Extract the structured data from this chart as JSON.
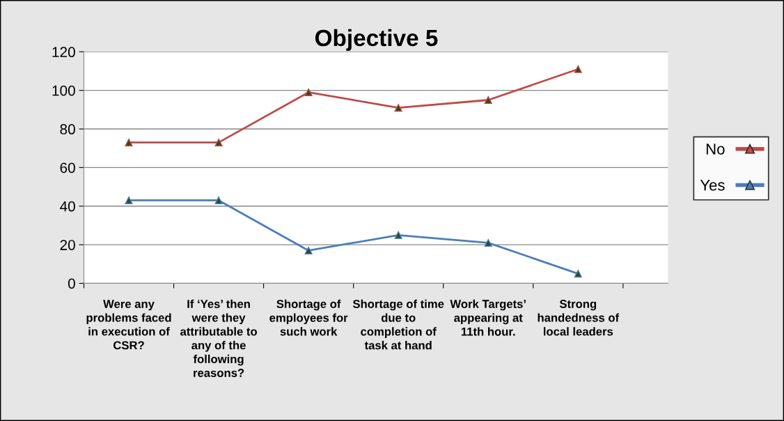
{
  "chart_data": {
    "type": "line",
    "title": "Objective 5",
    "categories": [
      "Were any problems faced in execution of CSR?",
      "If ‘Yes’ then were they attributable to any of the following reasons?",
      "Shortage of employees for such work",
      "Shortage of time due to completion of task at hand",
      "Work Targets’ appearing at 11th hour.",
      "Strong handedness of local leaders"
    ],
    "series": [
      {
        "name": "No",
        "color": "#be4b48",
        "values": [
          73,
          73,
          99,
          91,
          95,
          111
        ]
      },
      {
        "name": "Yes",
        "color": "#4a7ebb",
        "values": [
          43,
          43,
          17,
          25,
          21,
          5
        ]
      }
    ],
    "ylim": [
      0,
      120
    ],
    "yticks": [
      0,
      20,
      40,
      60,
      80,
      100,
      120
    ],
    "grid": "y",
    "legend": "right",
    "marker": "triangle",
    "line_style": "solid"
  }
}
